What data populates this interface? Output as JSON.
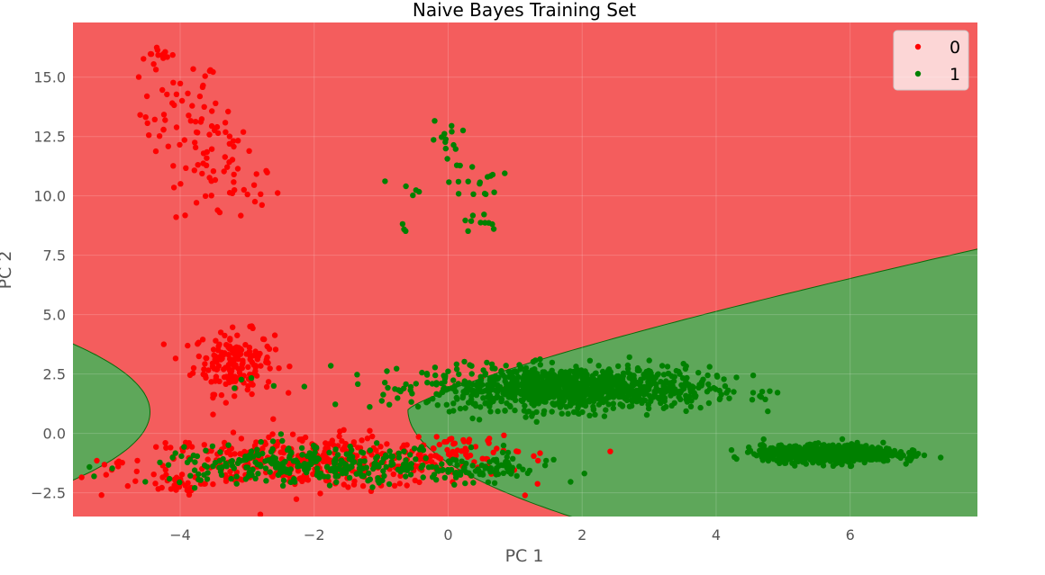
{
  "chart_data": {
    "type": "scatter",
    "title": "Naive Bayes Training Set",
    "xlabel": "PC 1",
    "ylabel": "PC 2",
    "xlim": [
      -5.6,
      7.9
    ],
    "ylim": [
      -3.5,
      17.3
    ],
    "xticks": [
      -4,
      -2,
      0,
      2,
      4,
      6
    ],
    "xtick_labels": [
      "−4",
      "−2",
      "0",
      "2",
      "4",
      "6"
    ],
    "yticks": [
      -2.5,
      0.0,
      2.5,
      5.0,
      7.5,
      10.0,
      12.5,
      15.0
    ],
    "ytick_labels": [
      "−2.5",
      "0.0",
      "2.5",
      "5.0",
      "7.5",
      "10.0",
      "12.5",
      "15.0"
    ],
    "grid": true,
    "legend_position": "top-right",
    "background_regions": [
      {
        "class": "0",
        "color": "#f45d5d"
      },
      {
        "class": "1",
        "color": "#5ea75a"
      }
    ],
    "series": [
      {
        "name": "0",
        "color": "#ff0000",
        "clusters": [
          {
            "cx": -4.3,
            "cy": 15.9,
            "sx": 0.12,
            "sy": 0.25,
            "n": 12
          },
          {
            "cx": -4.0,
            "cy": 13.5,
            "sx": 0.3,
            "sy": 1.2,
            "n": 45
          },
          {
            "cx": -3.5,
            "cy": 12.4,
            "sx": 0.25,
            "sy": 0.9,
            "n": 30
          },
          {
            "cx": -3.3,
            "cy": 10.3,
            "sx": 0.4,
            "sy": 0.8,
            "n": 35
          },
          {
            "cx": -3.2,
            "cy": 3.0,
            "sx": 0.3,
            "sy": 0.65,
            "n": 180
          },
          {
            "cx": -2.0,
            "cy": -1.2,
            "sx": 1.4,
            "sy": 0.55,
            "n": 420
          },
          {
            "cx": 0.1,
            "cy": -0.6,
            "sx": 0.5,
            "sy": 0.35,
            "n": 30
          },
          {
            "cx": -4.1,
            "cy": -2.2,
            "sx": 0.2,
            "sy": 0.2,
            "n": 20
          },
          {
            "cx": 1.0,
            "cy": 1.9,
            "sx": 0.4,
            "sy": 0.3,
            "n": 8
          }
        ]
      },
      {
        "name": "1",
        "color": "#008000",
        "clusters": [
          {
            "cx": 0.0,
            "cy": 12.2,
            "sx": 0.12,
            "sy": 0.5,
            "n": 15
          },
          {
            "cx": 0.4,
            "cy": 10.6,
            "sx": 0.2,
            "sy": 0.35,
            "n": 15
          },
          {
            "cx": 0.45,
            "cy": 8.8,
            "sx": 0.12,
            "sy": 0.3,
            "n": 10
          },
          {
            "cx": -0.65,
            "cy": 10.5,
            "sx": 0.15,
            "sy": 0.3,
            "n": 5
          },
          {
            "cx": -0.6,
            "cy": 8.7,
            "sx": 0.05,
            "sy": 0.2,
            "n": 3
          },
          {
            "cx": 1.8,
            "cy": 1.9,
            "sx": 1.05,
            "sy": 0.45,
            "n": 1100
          },
          {
            "cx": 5.7,
            "cy": -0.85,
            "sx": 0.5,
            "sy": 0.17,
            "n": 900
          },
          {
            "cx": -2.0,
            "cy": -1.35,
            "sx": 1.2,
            "sy": 0.4,
            "n": 300
          },
          {
            "cx": 0.4,
            "cy": -1.5,
            "sx": 0.6,
            "sy": 0.25,
            "n": 80
          },
          {
            "cx": -3.0,
            "cy": 2.0,
            "sx": 0.25,
            "sy": 0.2,
            "n": 4
          }
        ]
      }
    ]
  }
}
